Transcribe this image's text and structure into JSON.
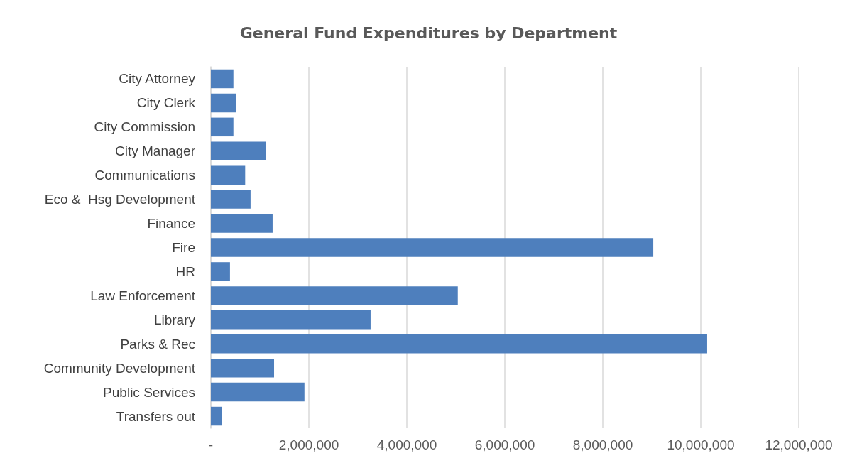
{
  "chart_data": {
    "type": "bar",
    "orientation": "horizontal",
    "title": "General Fund Expenditures by Department",
    "categories": [
      "City Attorney",
      "City Clerk",
      "City Commission",
      "City Manager",
      "Communications",
      "Eco &  Hsg Development",
      "Finance",
      "Fire",
      "HR",
      "Law Enforcement",
      "Library",
      "Parks & Rec",
      "Community Development",
      "Public Services",
      "Transfers out"
    ],
    "values": [
      460000,
      510000,
      460000,
      1120000,
      700000,
      810000,
      1260000,
      9030000,
      390000,
      5040000,
      3260000,
      10130000,
      1290000,
      1910000,
      220000
    ],
    "color": "#4e7fbd",
    "xlim": [
      0,
      12000000
    ],
    "xticks": [
      {
        "value": 0,
        "label": "-"
      },
      {
        "value": 2000000,
        "label": "2,000,000"
      },
      {
        "value": 4000000,
        "label": "4,000,000"
      },
      {
        "value": 6000000,
        "label": "6,000,000"
      },
      {
        "value": 8000000,
        "label": "8,000,000"
      },
      {
        "value": 10000000,
        "label": "10,000,000"
      },
      {
        "value": 12000000,
        "label": "12,000,000"
      }
    ],
    "grid": "x"
  }
}
